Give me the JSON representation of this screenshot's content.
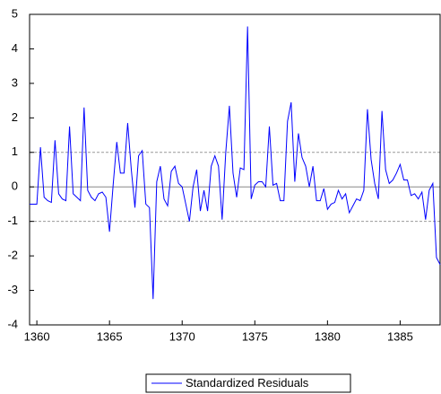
{
  "chart_data": {
    "type": "line",
    "x": [
      1359.5,
      1359.75,
      1360,
      1360.25,
      1360.5,
      1360.75,
      1361,
      1361.25,
      1361.5,
      1361.75,
      1362,
      1362.25,
      1362.5,
      1362.75,
      1363,
      1363.25,
      1363.5,
      1363.75,
      1364,
      1364.25,
      1364.5,
      1364.75,
      1365,
      1365.25,
      1365.5,
      1365.75,
      1366,
      1366.25,
      1366.5,
      1366.75,
      1367,
      1367.25,
      1367.5,
      1367.75,
      1368,
      1368.25,
      1368.5,
      1368.75,
      1369,
      1369.25,
      1369.5,
      1369.75,
      1370,
      1370.25,
      1370.5,
      1370.75,
      1371,
      1371.25,
      1371.5,
      1371.75,
      1372,
      1372.25,
      1372.5,
      1372.75,
      1373,
      1373.25,
      1373.5,
      1373.75,
      1374,
      1374.25,
      1374.5,
      1374.75,
      1375,
      1375.25,
      1375.5,
      1375.75,
      1376,
      1376.25,
      1376.5,
      1376.75,
      1377,
      1377.25,
      1377.5,
      1377.75,
      1378,
      1378.25,
      1378.5,
      1378.75,
      1379,
      1379.25,
      1379.5,
      1379.75,
      1380,
      1380.25,
      1380.5,
      1380.75,
      1381,
      1381.25,
      1381.5,
      1381.75,
      1382,
      1382.25,
      1382.5,
      1382.75,
      1383,
      1383.25,
      1383.5,
      1383.75,
      1384,
      1384.25,
      1384.5,
      1384.75,
      1385,
      1385.25,
      1385.5,
      1385.75,
      1386,
      1386.25,
      1386.5,
      1386.75,
      1387,
      1387.25,
      1387.5,
      1387.75
    ],
    "series": [
      {
        "name": "Standardized Residuals",
        "color": "#0000ff",
        "values": [
          -0.5,
          -0.5,
          -0.5,
          1.15,
          -0.3,
          -0.4,
          -0.45,
          1.35,
          -0.2,
          -0.35,
          -0.4,
          1.75,
          -0.2,
          -0.3,
          -0.4,
          2.3,
          -0.1,
          -0.3,
          -0.4,
          -0.2,
          -0.15,
          -0.3,
          -1.3,
          0.05,
          1.3,
          0.4,
          0.4,
          1.85,
          0.5,
          -0.6,
          0.9,
          1.05,
          -0.5,
          -0.6,
          -3.25,
          0.15,
          0.6,
          -0.35,
          -0.55,
          0.45,
          0.6,
          0.1,
          0.0,
          -0.5,
          -1.0,
          0.0,
          0.5,
          -0.7,
          -0.1,
          -0.7,
          0.6,
          0.9,
          0.6,
          -0.95,
          1.0,
          2.35,
          0.4,
          -0.3,
          0.55,
          0.5,
          4.65,
          -0.35,
          0.05,
          0.15,
          0.15,
          0.0,
          1.75,
          0.05,
          0.1,
          -0.4,
          -0.4,
          1.9,
          2.45,
          0.15,
          1.55,
          0.85,
          0.6,
          0.0,
          0.6,
          -0.4,
          -0.4,
          -0.05,
          -0.65,
          -0.5,
          -0.45,
          -0.1,
          -0.35,
          -0.2,
          -0.75,
          -0.55,
          -0.35,
          -0.4,
          -0.1,
          2.25,
          0.8,
          0.1,
          -0.35,
          2.2,
          0.5,
          0.1,
          0.2,
          0.4,
          0.65,
          0.2,
          0.2,
          -0.25,
          -0.2,
          -0.35,
          -0.15,
          -0.95,
          -0.1,
          0.1,
          -2.05,
          -2.25
        ]
      }
    ],
    "xlim": [
      1359.5,
      1387.75
    ],
    "xticks": [
      1360,
      1365,
      1370,
      1375,
      1380,
      1385
    ],
    "ylim": [
      -4,
      5
    ],
    "yticks": [
      -4,
      -3,
      -2,
      -1,
      0,
      1,
      2,
      3,
      4,
      5
    ],
    "hlines": [
      -1,
      0,
      1
    ],
    "legend": "bottom"
  }
}
